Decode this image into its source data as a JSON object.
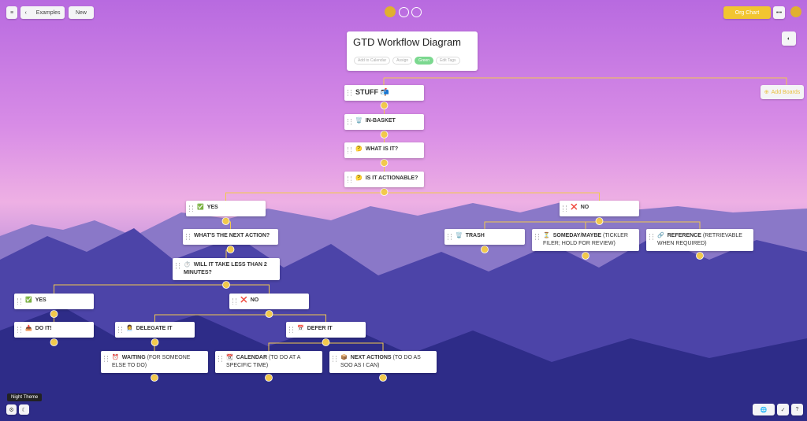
{
  "toolbar": {
    "back": "Examples",
    "new": "New",
    "view": "Org Chart"
  },
  "header": {
    "title": "GTD Workflow Diagram",
    "actions": [
      "Add to Calendar",
      "Assign",
      "Green",
      "Edit Tags"
    ]
  },
  "add_board": "Add Boards",
  "tooltip": "Night Theme",
  "nodes": [
    {
      "icon": "",
      "title": "STUFF 📬",
      "note": ""
    },
    {
      "icon": "🗑️",
      "title": "IN-BASKET",
      "note": ""
    },
    {
      "icon": "🤔",
      "title": "WHAT IS IT?",
      "note": ""
    },
    {
      "icon": "🤔",
      "title": "IS IT ACTIONABLE?",
      "note": ""
    },
    {
      "icon": "✅",
      "title": "YES",
      "note": ""
    },
    {
      "icon": "❌",
      "title": "NO",
      "note": ""
    },
    {
      "icon": "",
      "title": "WHAT'S THE NEXT ACTION?",
      "note": ""
    },
    {
      "icon": "⏱️",
      "title": "WILL IT TAKE LESS THAN 2 MINUTES?",
      "note": ""
    },
    {
      "icon": "🗑️",
      "title": "TRASH",
      "note": ""
    },
    {
      "icon": "⏳",
      "title": "SOMEDAY/MAYBE",
      "note": "(TICKLER FILER; HOLD FOR REVIEW)"
    },
    {
      "icon": "🔗",
      "title": "REFERENCE",
      "note": "(RETRIEVABLE WHEN REQUIRED)"
    },
    {
      "icon": "✅",
      "title": "YES",
      "note": ""
    },
    {
      "icon": "❌",
      "title": "NO",
      "note": ""
    },
    {
      "icon": "📥",
      "title": "DO IT!",
      "note": ""
    },
    {
      "icon": "👩‍💼",
      "title": "DELEGATE IT",
      "note": ""
    },
    {
      "icon": "📅",
      "title": "DEFER IT",
      "note": ""
    },
    {
      "icon": "⏰",
      "title": "WAITING",
      "note": "(FOR SOMEONE ELSE TO DO)"
    },
    {
      "icon": "📆",
      "title": "CALENDAR",
      "note": "(TO DO AT A SPECIFIC TIME)"
    },
    {
      "icon": "📦",
      "title": "NEXT ACTIONS",
      "note": "(TO DO AS SOO AS I CAN)"
    }
  ]
}
